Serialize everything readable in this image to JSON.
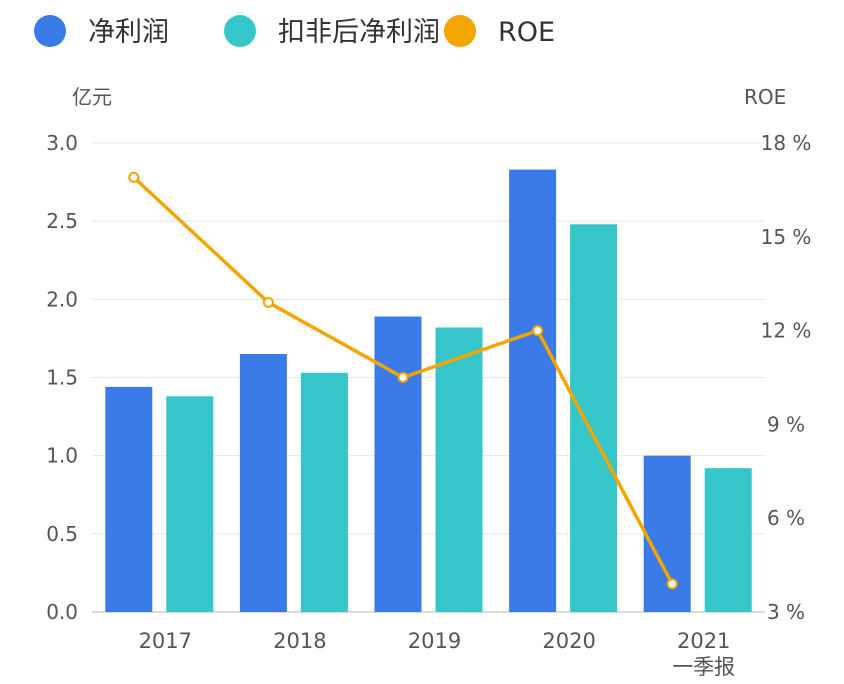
{
  "chart_data": {
    "type": "bar",
    "categories": [
      [
        "2017"
      ],
      [
        "2018"
      ],
      [
        "2019"
      ],
      [
        "2020"
      ],
      [
        "2021",
        "一季报"
      ]
    ],
    "left_axis": {
      "label": "亿元",
      "ylim": [
        0,
        3.0
      ],
      "ticks": [
        "0.0",
        "0.5",
        "1.0",
        "1.5",
        "2.0",
        "2.5",
        "3.0"
      ],
      "tick_values": [
        0,
        0.5,
        1.0,
        1.5,
        2.0,
        2.5,
        3.0
      ]
    },
    "right_axis": {
      "label": "ROE",
      "ylim": [
        3,
        18
      ],
      "ticks": [
        "3 %",
        "6 %",
        "9 %",
        "12 %",
        "15 %",
        "18 %"
      ],
      "tick_values": [
        3,
        6,
        9,
        12,
        15,
        18
      ]
    },
    "series": [
      {
        "name": "净利润",
        "type": "bar",
        "axis": "left",
        "color": "#3b7be8",
        "values": [
          1.44,
          1.65,
          1.89,
          2.83,
          1.0
        ]
      },
      {
        "name": "扣非后净利润",
        "type": "bar",
        "axis": "left",
        "color": "#36c5c8",
        "values": [
          1.38,
          1.53,
          1.82,
          2.48,
          0.92
        ]
      },
      {
        "name": "ROE",
        "type": "line",
        "axis": "right",
        "color": "#f5a500",
        "values": [
          16.9,
          12.9,
          10.5,
          12.0,
          3.9
        ]
      }
    ],
    "grid": true,
    "legend_position": "top-left"
  }
}
